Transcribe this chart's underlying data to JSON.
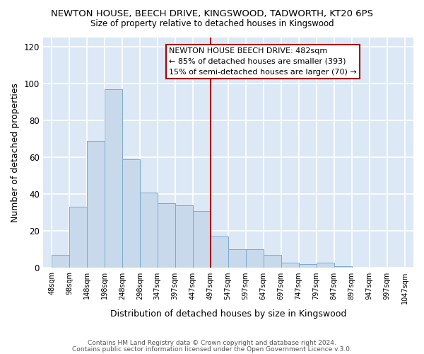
{
  "title": "NEWTON HOUSE, BEECH DRIVE, KINGSWOOD, TADWORTH, KT20 6PS",
  "subtitle": "Size of property relative to detached houses in Kingswood",
  "xlabel": "Distribution of detached houses by size in Kingswood",
  "ylabel": "Number of detached properties",
  "heights": [
    7,
    33,
    69,
    97,
    59,
    41,
    35,
    34,
    31,
    17,
    10,
    10,
    7,
    3,
    2,
    3,
    1
  ],
  "bin_edges": [
    48,
    98,
    148,
    198,
    248,
    298,
    347,
    397,
    447,
    497,
    547,
    597,
    647,
    697,
    747,
    797,
    847,
    897
  ],
  "bar_color": "#c8d9ec",
  "bar_edge_color": "#7aabcf",
  "fig_bg_color": "#ffffff",
  "ax_bg_color": "#dce8f5",
  "grid_color": "#c8d4e0",
  "vline_x": 497,
  "vline_color": "#aa0000",
  "annotation_text": "NEWTON HOUSE BEECH DRIVE: 482sqm\n← 85% of detached houses are smaller (393)\n15% of semi-detached houses are larger (70) →",
  "annotation_box_color": "#aa0000",
  "ylim": [
    0,
    125
  ],
  "yticks": [
    0,
    20,
    40,
    60,
    80,
    100,
    120
  ],
  "tick_labels": [
    "48sqm",
    "98sqm",
    "148sqm",
    "198sqm",
    "248sqm",
    "298sqm",
    "347sqm",
    "397sqm",
    "447sqm",
    "497sqm",
    "547sqm",
    "597sqm",
    "647sqm",
    "697sqm",
    "747sqm",
    "797sqm",
    "847sqm",
    "897sqm",
    "947sqm",
    "997sqm",
    "1047sqm"
  ],
  "xtick_positions": [
    48,
    98,
    148,
    198,
    248,
    298,
    347,
    397,
    447,
    497,
    547,
    597,
    647,
    697,
    747,
    797,
    847,
    897,
    947,
    997,
    1047
  ],
  "footer1": "Contains HM Land Registry data © Crown copyright and database right 2024.",
  "footer2": "Contains public sector information licensed under the Open Government Licence v.3.0."
}
